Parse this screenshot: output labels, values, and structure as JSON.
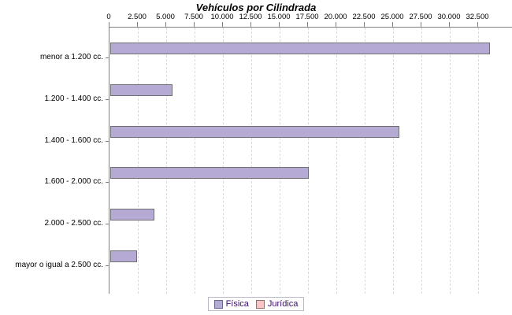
{
  "title": "Vehículos por Cilindrada",
  "legend": {
    "items": [
      {
        "label": "Física",
        "fill": "#b4aad4",
        "border": "#6a6a8e"
      },
      {
        "label": "Jurídica",
        "fill": "#f8c5c5",
        "border": "#8e7070"
      }
    ],
    "position": "bottom"
  },
  "chart_data": {
    "type": "bar",
    "orientation": "horizontal",
    "title": "Vehículos por Cilindrada",
    "categories": [
      "menor a 1.200 cc.",
      "1.200 - 1.400 cc.",
      "1.400 - 1.600 cc.",
      "1.600 - 2.000 cc.",
      "2.000 - 2.500 cc.",
      "mayor o igual a 2.500 cc."
    ],
    "series": [
      {
        "name": "Física",
        "color": "#b4aad4",
        "values": [
          33400,
          5400,
          25400,
          17400,
          3850,
          2270
        ]
      },
      {
        "name": "Jurídica",
        "color": "#f8c5c5",
        "values": [
          0,
          0,
          0,
          0,
          0,
          0
        ]
      }
    ],
    "x_axis": {
      "position": "top",
      "min": 0,
      "max": 35500,
      "tick_interval": 2500,
      "tick_labels": [
        "0",
        "2.500",
        "5.000",
        "7.500",
        "10.000",
        "12.500",
        "15.000",
        "17.500",
        "20.000",
        "22.500",
        "25.000",
        "27.500",
        "30.000",
        "32.500"
      ],
      "gridlines": true
    },
    "legend_entries": [
      "Física",
      "Jurídica"
    ],
    "legend_position": "bottom"
  }
}
